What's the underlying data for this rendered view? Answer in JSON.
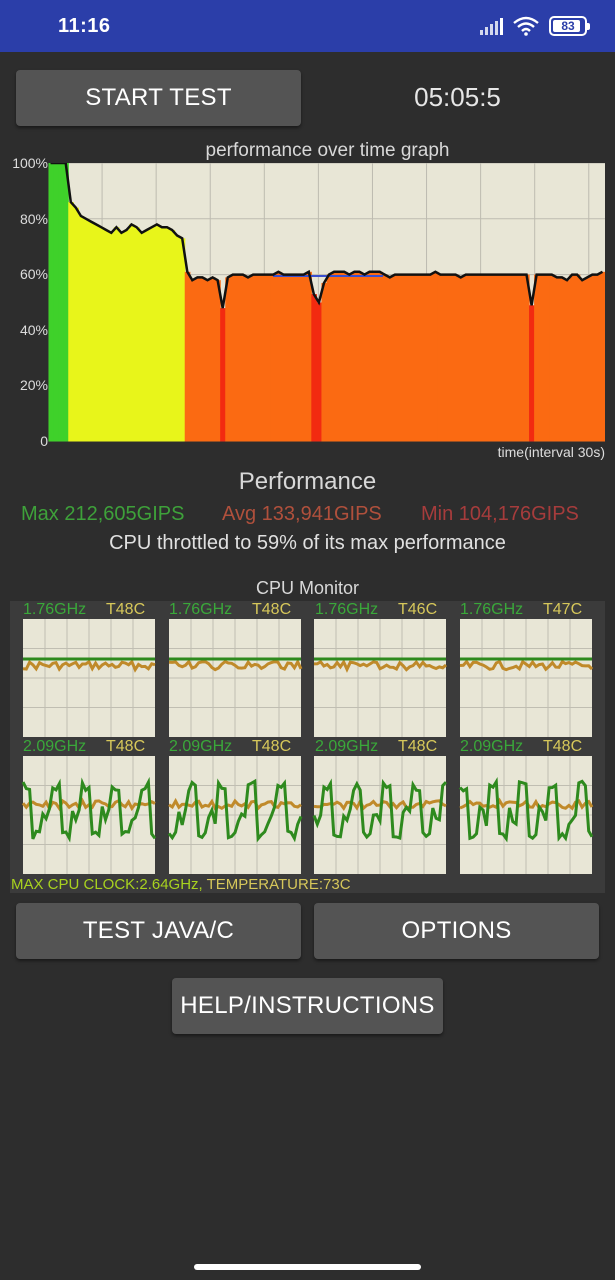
{
  "status_bar": {
    "time": "11:16",
    "battery_level": "83",
    "icons": [
      "signal-icon",
      "wifi-icon",
      "battery-icon"
    ],
    "color": "#2b3ea9"
  },
  "controls": {
    "start_test_label": "START TEST",
    "timer": "05:05:5",
    "test_java_c_label": "TEST JAVA/C",
    "options_label": "OPTIONS",
    "help_label": "HELP/INSTRUCTIONS"
  },
  "performance_graph": {
    "title": "performance over time graph",
    "x_axis_label": "time(interval 30s)",
    "y_tick_labels": [
      "100%",
      "80%",
      "60%",
      "40%",
      "20%",
      "0"
    ]
  },
  "chart_data": {
    "type": "area",
    "title": "performance over time graph",
    "xlabel": "time(interval 30s)",
    "ylabel": "",
    "ylim": [
      0,
      100
    ],
    "y_ticks": [
      0,
      20,
      40,
      60,
      80,
      100
    ],
    "grid": true,
    "series": [
      {
        "values": [
          100,
          100,
          100,
          100,
          86,
          84,
          81,
          80,
          79,
          78,
          77,
          76,
          75,
          77,
          75,
          76,
          78,
          77,
          75,
          76,
          77,
          78,
          77,
          77,
          76,
          74,
          73,
          61,
          58,
          59,
          59,
          58,
          59,
          58,
          48,
          59,
          60,
          60,
          60,
          59,
          60,
          60,
          60,
          60,
          60,
          61,
          60,
          60,
          60,
          60,
          60,
          61,
          53,
          50,
          57,
          60,
          61,
          61,
          61,
          60,
          61,
          61,
          60,
          61,
          61,
          61,
          60,
          59,
          60,
          60,
          60,
          60,
          60,
          60,
          60,
          60,
          61,
          60,
          60,
          60,
          60,
          59,
          60,
          60,
          60,
          60,
          60,
          60,
          60,
          60,
          60,
          60,
          60,
          60,
          60,
          49,
          60,
          60,
          60,
          60,
          59,
          59,
          58,
          60,
          60,
          58,
          59,
          60,
          60,
          61
        ]
      }
    ]
  },
  "performance": {
    "title": "Performance",
    "max": "Max 212,605GIPS",
    "avg": "Avg 133,941GIPS",
    "min": "Min 104,176GIPS",
    "throttle_text": "CPU throttled to 59% of its max performance",
    "colors": {
      "max": "#3ea13a",
      "avg": "#b0503c",
      "min": "#a63c3c"
    }
  },
  "cpu_monitor": {
    "title": "CPU Monitor",
    "cores": [
      {
        "freq": "1.76GHz",
        "temp": "T48C"
      },
      {
        "freq": "1.76GHz",
        "temp": "T48C"
      },
      {
        "freq": "1.76GHz",
        "temp": "T46C"
      },
      {
        "freq": "1.76GHz",
        "temp": "T47C"
      },
      {
        "freq": "2.09GHz",
        "temp": "T48C"
      },
      {
        "freq": "2.09GHz",
        "temp": "T48C"
      },
      {
        "freq": "2.09GHz",
        "temp": "T48C"
      },
      {
        "freq": "2.09GHz",
        "temp": "T48C"
      }
    ],
    "max_clock_text": "MAX CPU CLOCK:2.64GHz,",
    "temperature_text": "TEMPERATURE:73C"
  }
}
